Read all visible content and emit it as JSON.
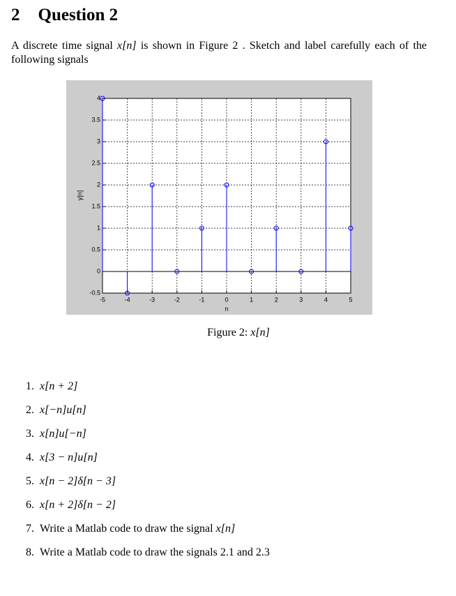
{
  "header": {
    "number": "2",
    "title": "Question 2"
  },
  "intro": {
    "before": "A discrete time signal",
    "math": "x[n]",
    "after": "is shown in Figure 2 . Sketch and label carefully each of the following signals"
  },
  "figure": {
    "chart_data": {
      "type": "stem",
      "x": [
        -5,
        -4,
        -3,
        -2,
        -1,
        0,
        1,
        2,
        3,
        4,
        5
      ],
      "values": [
        4,
        -0.5,
        2,
        0,
        1,
        2,
        0,
        1,
        0,
        3,
        1
      ],
      "color": "#0000ff",
      "xlabel": "n",
      "ylabel": "y[n]",
      "xlim": [
        -5,
        5
      ],
      "ylim": [
        -0.5,
        4
      ],
      "xticks": [
        -5,
        -4,
        -3,
        -2,
        -1,
        0,
        1,
        2,
        3,
        4,
        5
      ],
      "yticks": [
        -0.5,
        0,
        0.5,
        1,
        1.5,
        2,
        2.5,
        3,
        3.5,
        4
      ],
      "grid": true
    },
    "caption": {
      "label": "Figure 2:",
      "math": "x[n]"
    }
  },
  "items": [
    {
      "number": "1.",
      "math": "x[n + 2]"
    },
    {
      "number": "2.",
      "math": "x[−n]u[n]"
    },
    {
      "number": "3.",
      "math": "x[n]u[−n]"
    },
    {
      "number": "4.",
      "math": "x[3 − n]u[n]"
    },
    {
      "number": "5.",
      "math": "x[n − 2]δ[n − 3]"
    },
    {
      "number": "6.",
      "math": "x[n + 2]δ[n − 2]"
    },
    {
      "number": "7.",
      "text": "Write a Matlab code to draw the signal",
      "math": "x[n]"
    },
    {
      "number": "8.",
      "text": "Write a Matlab code to draw the signals 2.1 and 2.3"
    }
  ]
}
